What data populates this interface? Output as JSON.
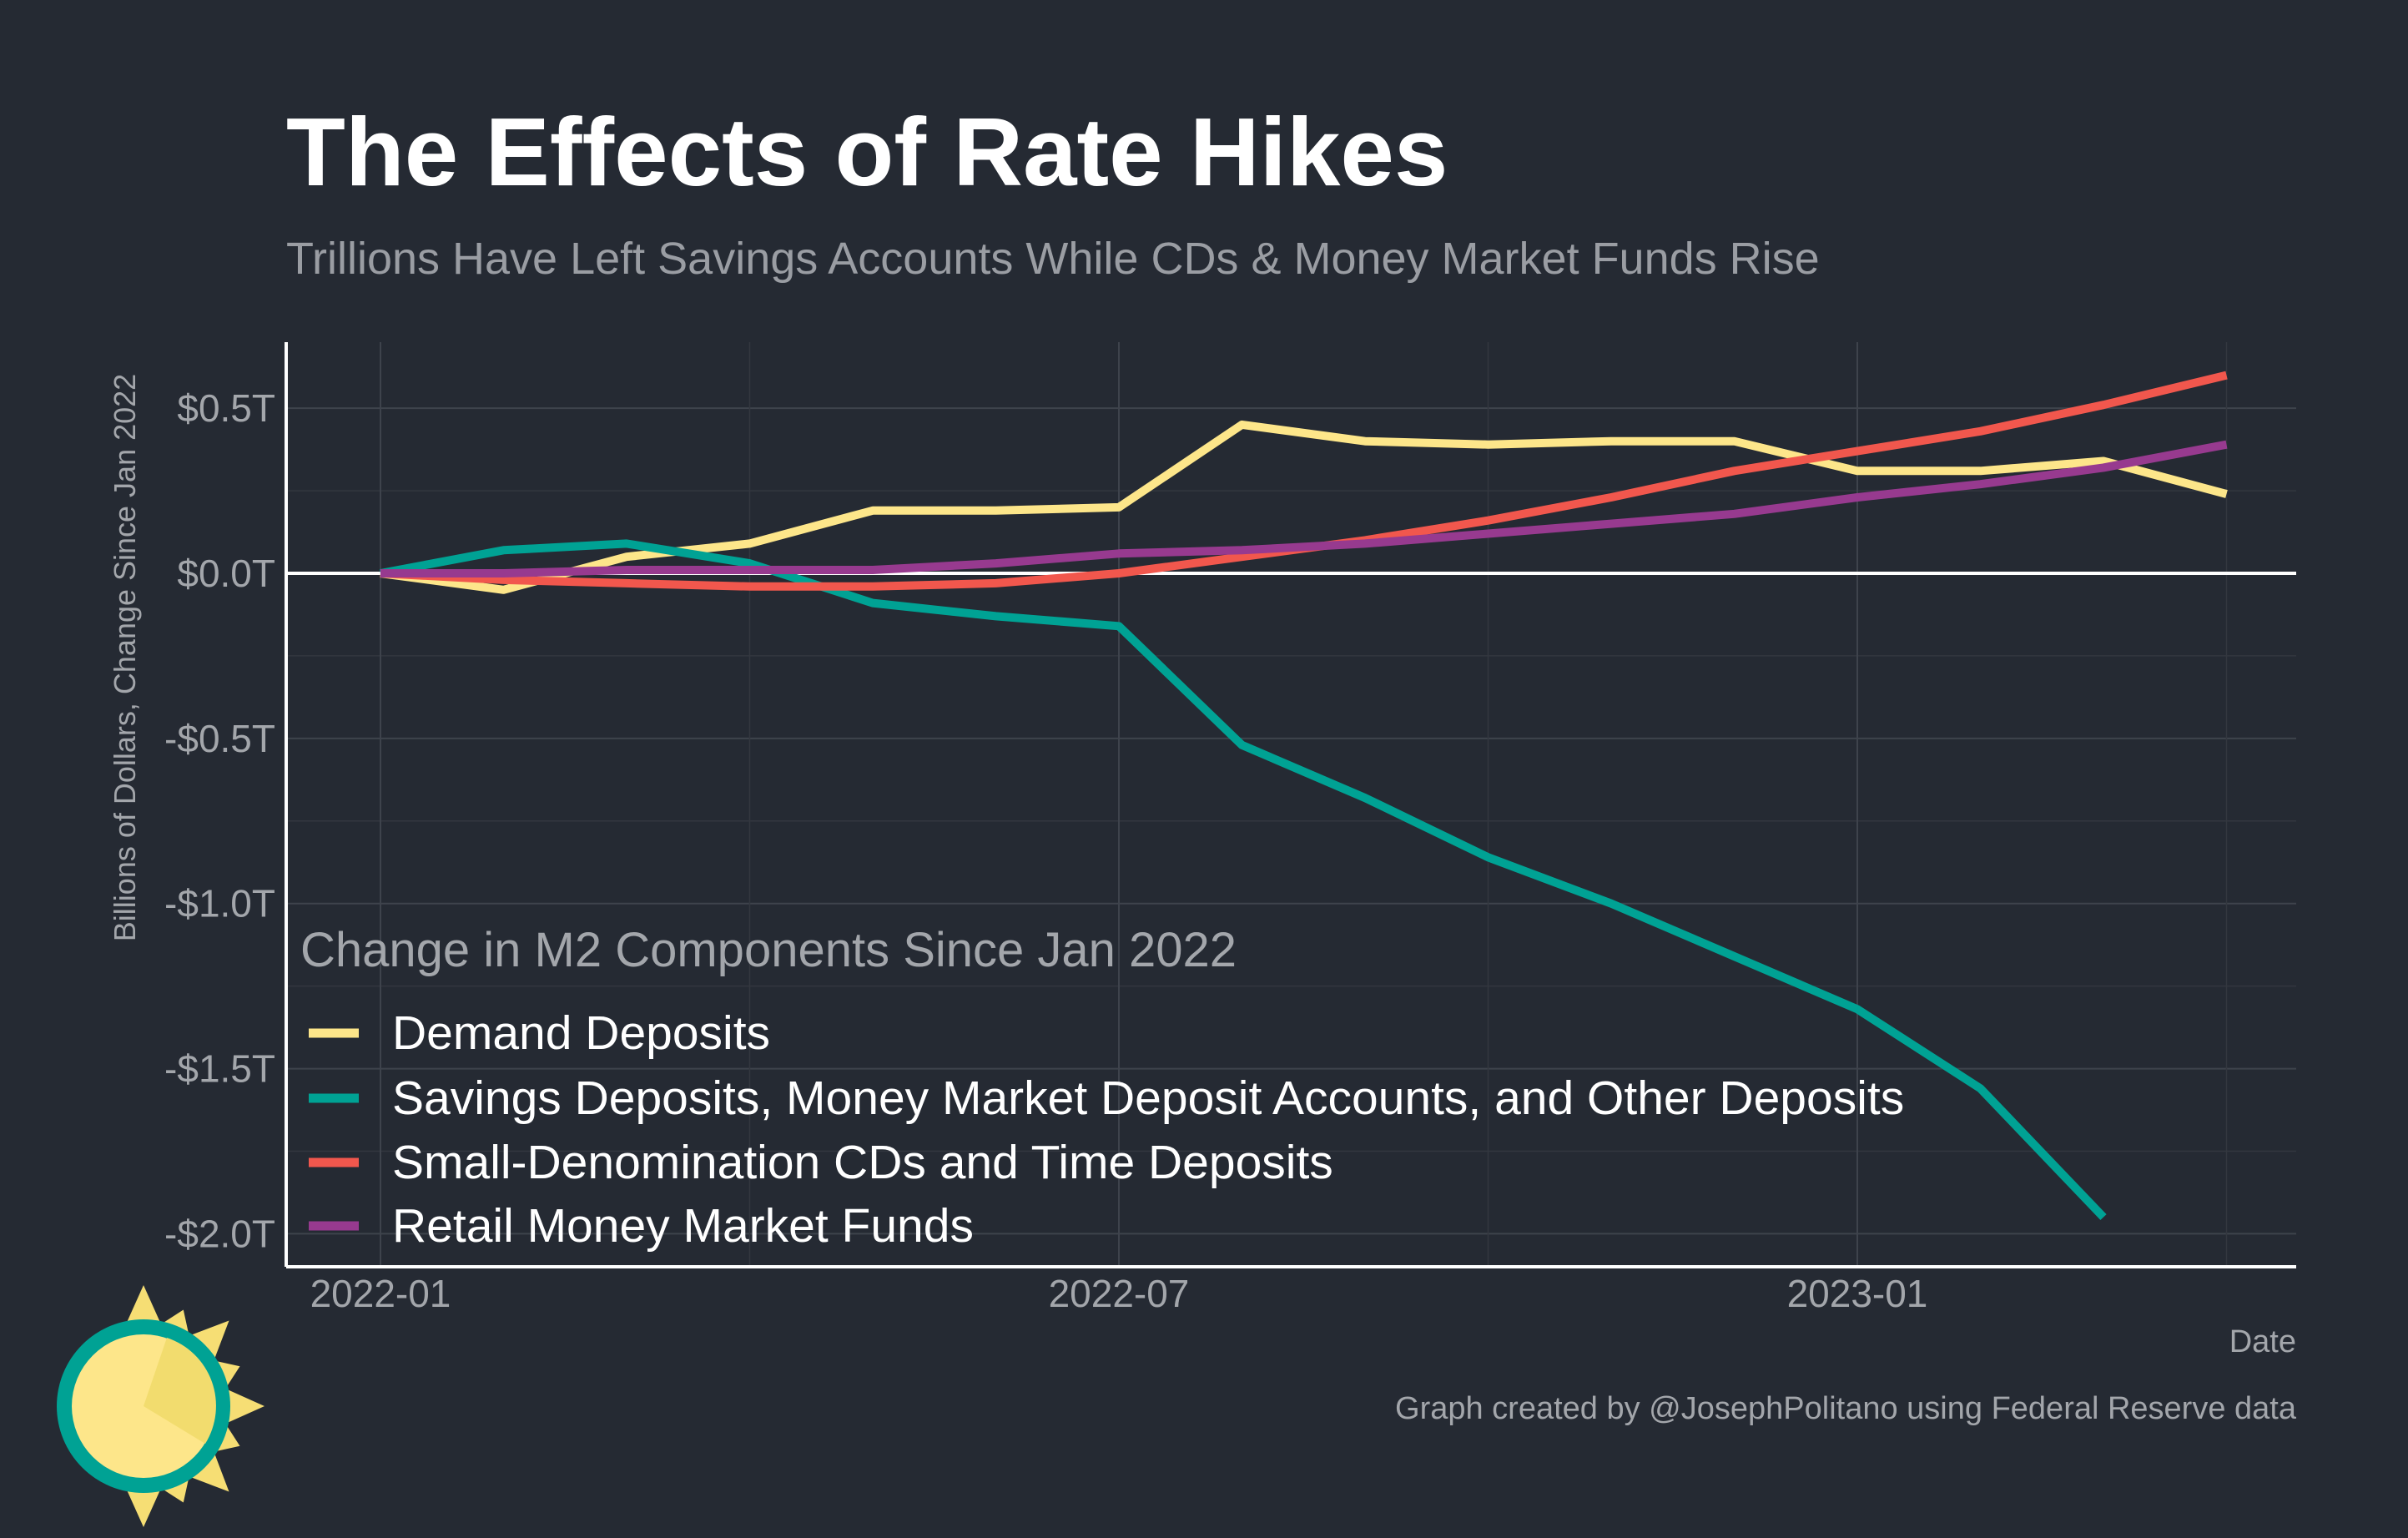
{
  "chart_data": {
    "type": "line",
    "title": "The Effects of Rate Hikes",
    "subtitle": "Trillions Have Left Savings Accounts While CDs & Money Market Funds Rise",
    "xlabel": "Date",
    "ylabel": "Billions of Dollars, Change Since Jan 2022",
    "x": [
      "2022-01",
      "2022-02",
      "2022-03",
      "2022-04",
      "2022-05",
      "2022-06",
      "2022-07",
      "2022-08",
      "2022-09",
      "2022-10",
      "2022-11",
      "2022-12",
      "2023-01",
      "2023-02",
      "2023-03",
      "2023-04"
    ],
    "x_ticks": [
      {
        "value": "2022-01",
        "label": "2022-01"
      },
      {
        "value": "2022-07",
        "label": "2022-07"
      },
      {
        "value": "2023-01",
        "label": "2023-01"
      }
    ],
    "y_ticks": [
      {
        "value": 0.5,
        "label": "$0.5T"
      },
      {
        "value": 0.0,
        "label": "$0.0T"
      },
      {
        "value": -0.5,
        "label": "-$0.5T"
      },
      {
        "value": -1.0,
        "label": "-$1.0T"
      },
      {
        "value": -1.5,
        "label": "-$1.5T"
      },
      {
        "value": -2.0,
        "label": "-$2.0T"
      }
    ],
    "ylim": [
      -2.1,
      0.7
    ],
    "grid": true,
    "legend": {
      "title": "Change in M2 Components Since Jan 2022",
      "position": "bottom-left"
    },
    "series": [
      {
        "name": "Demand Deposits",
        "color": "#fde68a",
        "values": [
          0.0,
          -0.05,
          0.05,
          0.09,
          0.19,
          0.19,
          0.2,
          0.45,
          0.4,
          0.39,
          0.4,
          0.4,
          0.31,
          0.31,
          0.34,
          0.24
        ]
      },
      {
        "name": "Savings Deposits, Money Market Deposit Accounts, and Other Deposits",
        "color": "#00a294",
        "values": [
          0.0,
          0.07,
          0.09,
          0.03,
          -0.09,
          -0.13,
          -0.16,
          -0.52,
          -0.68,
          -0.86,
          -1.0,
          -1.16,
          -1.32,
          -1.56,
          -1.95,
          null
        ]
      },
      {
        "name": "Small-Denomination CDs and Time Deposits",
        "color": "#f1574d",
        "values": [
          0.0,
          -0.02,
          -0.03,
          -0.04,
          -0.04,
          -0.03,
          0.0,
          0.05,
          0.1,
          0.16,
          0.23,
          0.31,
          0.37,
          0.43,
          0.51,
          0.6
        ]
      },
      {
        "name": "Retail Money Market Funds",
        "color": "#973a8f",
        "values": [
          0.0,
          0.0,
          0.01,
          0.01,
          0.01,
          0.03,
          0.06,
          0.07,
          0.09,
          0.12,
          0.15,
          0.18,
          0.23,
          0.27,
          0.32,
          0.39
        ]
      }
    ]
  },
  "caption": "Graph created by @JosephPolitano using Federal Reserve data",
  "logo": {
    "icon": "sun-logo-icon",
    "colors": {
      "outer_ring": "#00a294",
      "face": "#fde68a",
      "rays": "#f6de74"
    }
  }
}
